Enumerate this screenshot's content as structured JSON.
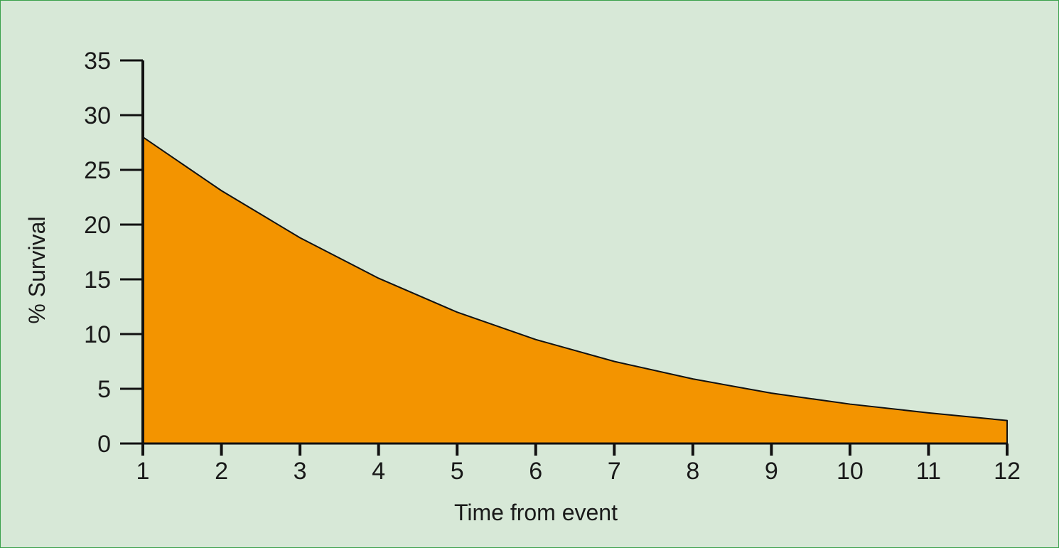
{
  "colors": {
    "background": "#d7e8d7",
    "border": "#3aa14a",
    "area_fill": "#f39400",
    "line": "#111111"
  },
  "chart_data": {
    "type": "area",
    "xlabel": "Time from event",
    "ylabel": "% Survival",
    "x": [
      1,
      2,
      3,
      4,
      5,
      6,
      7,
      8,
      9,
      10,
      11,
      12
    ],
    "series": [
      {
        "values": [
          28.0,
          23.1,
          18.8,
          15.1,
          12.0,
          9.5,
          7.5,
          5.9,
          4.6,
          3.6,
          2.8,
          2.1
        ]
      }
    ],
    "xlim": [
      1,
      12
    ],
    "ylim": [
      0,
      35
    ],
    "yticks": [
      0,
      5,
      10,
      15,
      20,
      25,
      30,
      35
    ],
    "xticks": [
      1,
      2,
      3,
      4,
      5,
      6,
      7,
      8,
      9,
      10,
      11,
      12
    ],
    "grid": false,
    "legend": "none"
  }
}
